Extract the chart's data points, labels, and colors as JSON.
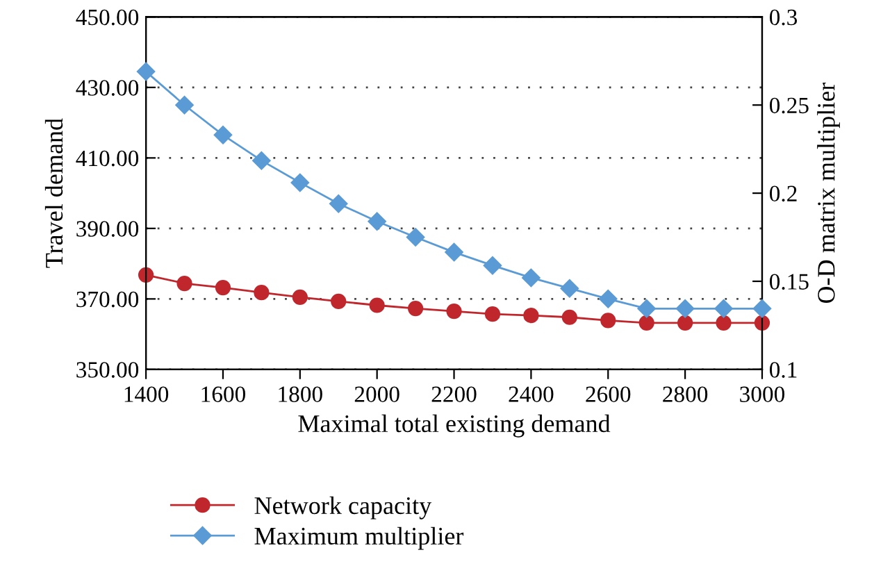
{
  "chart_data": {
    "type": "line",
    "xlabel": "Maximal total existing demand",
    "ylabel": "Travel demand",
    "y2label": "O-D matrix multiplier",
    "x": [
      1400,
      1500,
      1600,
      1700,
      1800,
      1900,
      2000,
      2100,
      2200,
      2300,
      2400,
      2500,
      2600,
      2700,
      2800,
      2900,
      3000
    ],
    "series": [
      {
        "name": "Network capacity",
        "color": "#c0272d",
        "marker": "circle",
        "values": [
          376.8,
          374.4,
          373.2,
          371.8,
          370.5,
          369.3,
          368.2,
          367.3,
          366.5,
          365.7,
          365.3,
          364.8,
          363.9,
          363.2,
          363.2,
          363.2,
          363.2
        ]
      },
      {
        "name": "Maximum multiplier",
        "color": "#5b9bd5",
        "marker": "diamond",
        "axis": "y2",
        "values": [
          0.269,
          0.25,
          0.233,
          0.2185,
          0.206,
          0.194,
          0.184,
          0.175,
          0.1665,
          0.159,
          0.152,
          0.146,
          0.14,
          0.1345,
          0.1345,
          0.1345,
          0.1345
        ]
      }
    ],
    "xlim": [
      1400,
      3000
    ],
    "xticks": [
      1400,
      1600,
      1800,
      2000,
      2200,
      2400,
      2600,
      2800,
      3000
    ],
    "ylim": [
      350,
      450
    ],
    "yticks": [
      {
        "value": 350,
        "label": "350.00"
      },
      {
        "value": 370,
        "label": "370.00"
      },
      {
        "value": 390,
        "label": "390.00"
      },
      {
        "value": 410,
        "label": "410.00"
      },
      {
        "value": 430,
        "label": "430.00"
      },
      {
        "value": 450,
        "label": "450.00"
      }
    ],
    "y2lim": [
      0.1,
      0.3
    ],
    "y2ticks": [
      0.1,
      0.15,
      0.2,
      0.25,
      0.3
    ],
    "grid": "y",
    "legend": "bottom",
    "line_style": "solid"
  }
}
